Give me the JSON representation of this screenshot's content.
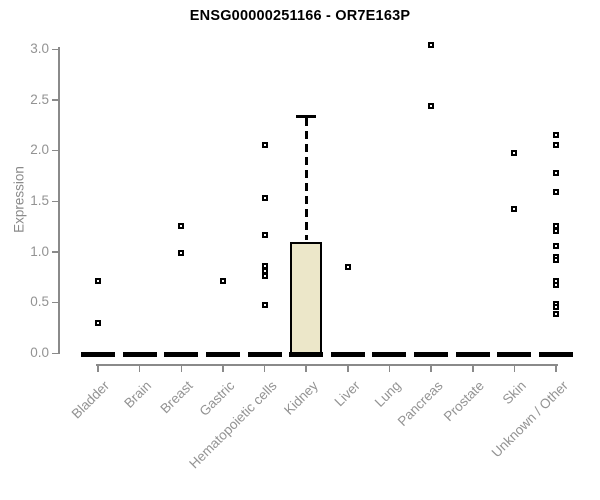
{
  "chart_data": {
    "type": "boxplot",
    "title": "ENSG00000251166 - OR7E163P",
    "ylabel": "Expression",
    "ylim": [
      0,
      3
    ],
    "yticks": [
      "0.0",
      "0.5",
      "1.0",
      "1.5",
      "2.0",
      "2.5",
      "3.0"
    ],
    "grid": false,
    "legend": "none",
    "marker": "small-open-square",
    "colors": {
      "box_fill": "#ece7c9",
      "box_border": "#000000",
      "median": "#000000",
      "whisker": "#000000",
      "axis": "#8a8a8a",
      "tick_label": "#939393",
      "title": "#000000",
      "background": "#ffffff"
    },
    "groups": [
      {
        "label": "Bladder",
        "median": 0,
        "points": [
          0.71,
          0.3
        ]
      },
      {
        "label": "Brain",
        "median": 0,
        "points": []
      },
      {
        "label": "Breast",
        "median": 0,
        "points": [
          1.25,
          0.99
        ]
      },
      {
        "label": "Gastric",
        "median": 0,
        "points": [
          0.71
        ]
      },
      {
        "label": "Hematopoietic cells",
        "median": 0,
        "points": [
          2.05,
          1.53,
          1.16,
          0.86,
          0.81,
          0.76,
          0.47
        ]
      },
      {
        "label": "Kidney",
        "median": 0,
        "q1": 0,
        "q3": 1.1,
        "whisker_high": 2.34,
        "points": []
      },
      {
        "label": "Liver",
        "median": 0,
        "points": [
          0.85
        ]
      },
      {
        "label": "Lung",
        "median": 0,
        "points": []
      },
      {
        "label": "Pancreas",
        "median": 0,
        "points": [
          3.04,
          2.44
        ]
      },
      {
        "label": "Prostate",
        "median": 0,
        "points": []
      },
      {
        "label": "Skin",
        "median": 0,
        "points": [
          1.97,
          1.42
        ]
      },
      {
        "label": "Unknown / Other",
        "median": 0,
        "points": [
          2.15,
          2.05,
          1.78,
          1.59,
          1.25,
          1.2,
          1.06,
          0.95,
          0.92,
          0.71,
          0.67,
          0.48,
          0.45,
          0.38
        ]
      }
    ]
  }
}
